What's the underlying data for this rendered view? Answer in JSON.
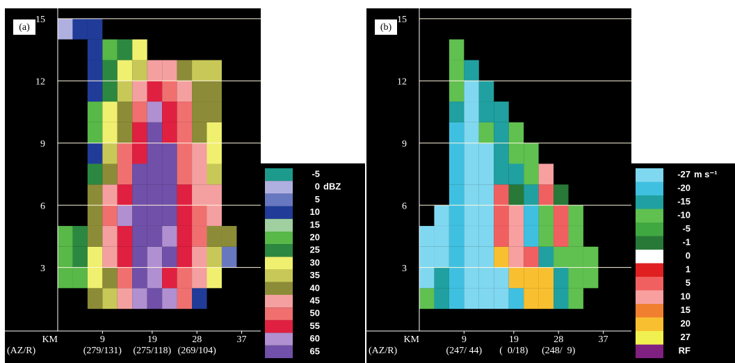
{
  "chart_data": [
    {
      "type": "heatmap",
      "panel_label": "(a)",
      "xlabel": "KM",
      "az_r_label": "(AZ/R)",
      "xlim": [
        0,
        40
      ],
      "xticks": [
        9,
        19,
        28,
        37
      ],
      "ylim": [
        0,
        16
      ],
      "yticks": [
        3,
        6,
        9,
        12,
        15
      ],
      "az_r": [
        "(279/131)",
        "(275/118)",
        "(269/104)"
      ],
      "xbins": [
        0,
        3,
        6,
        9,
        12,
        15,
        18,
        21,
        24,
        27,
        30,
        33,
        36
      ],
      "ybins": [
        1,
        2,
        3,
        4,
        5,
        6,
        7,
        8,
        9,
        10,
        11,
        12,
        13,
        14,
        15
      ],
      "z": [
        [
          null,
          null,
          40,
          35,
          45,
          60,
          65,
          60,
          50,
          10,
          null,
          null
        ],
        [
          20,
          20,
          30,
          40,
          50,
          65,
          60,
          55,
          50,
          45,
          30,
          null
        ],
        [
          20,
          25,
          30,
          45,
          55,
          65,
          60,
          65,
          55,
          45,
          35,
          5
        ],
        [
          20,
          25,
          40,
          45,
          55,
          65,
          65,
          60,
          55,
          50,
          40,
          40
        ],
        [
          null,
          null,
          40,
          50,
          60,
          65,
          65,
          65,
          55,
          50,
          45,
          null
        ],
        [
          null,
          null,
          40,
          45,
          55,
          65,
          65,
          65,
          55,
          45,
          45,
          null
        ],
        [
          null,
          null,
          25,
          40,
          50,
          65,
          65,
          65,
          50,
          45,
          35,
          null
        ],
        [
          null,
          null,
          10,
          35,
          50,
          55,
          65,
          65,
          50,
          45,
          30,
          null
        ],
        [
          null,
          null,
          20,
          30,
          40,
          55,
          65,
          55,
          50,
          40,
          30,
          null
        ],
        [
          null,
          null,
          20,
          30,
          40,
          50,
          60,
          55,
          50,
          40,
          40,
          null
        ],
        [
          null,
          null,
          10,
          25,
          35,
          45,
          55,
          50,
          45,
          40,
          40,
          null
        ],
        [
          null,
          null,
          10,
          25,
          30,
          35,
          45,
          45,
          40,
          35,
          35,
          null
        ],
        [
          null,
          null,
          10,
          20,
          25,
          30,
          null,
          null,
          null,
          null,
          null,
          null
        ],
        [
          0,
          10,
          10,
          null,
          null,
          null,
          null,
          null,
          null,
          null,
          null,
          null
        ]
      ],
      "legend": {
        "levels": [
          -5,
          0,
          5,
          10,
          15,
          20,
          25,
          30,
          35,
          40,
          45,
          50,
          55,
          60,
          65
        ],
        "colors": [
          "#1c9a8c",
          "#b0b0e0",
          "#6878c0",
          "#203c98",
          "#a0d0a0",
          "#58b848",
          "#2c8840",
          "#f0f070",
          "#c8c858",
          "#8c8c38",
          "#f4a0a0",
          "#f07070",
          "#e02040",
          "#b090d0",
          "#7050a8"
        ],
        "unit": "dBZ",
        "unit_level": 1
      }
    },
    {
      "type": "heatmap",
      "panel_label": "(b)",
      "xlabel": "KM",
      "az_r_label": "(AZ/R)",
      "xlim": [
        0,
        40
      ],
      "xticks": [
        9,
        19,
        28,
        37
      ],
      "ylim": [
        0,
        16
      ],
      "yticks": [
        3,
        6,
        9,
        12,
        15
      ],
      "az_r": [
        "(247/ 44)",
        "(  0/18)",
        "(248/  9)"
      ],
      "xbins": [
        0,
        3,
        6,
        9,
        12,
        15,
        18,
        21,
        24,
        27,
        30,
        33,
        36
      ],
      "ybins": [
        1,
        2,
        3,
        4,
        5,
        6,
        7,
        8,
        9,
        10,
        11,
        12,
        13,
        14
      ],
      "z": [
        [
          -10,
          -15,
          -20,
          -27,
          -27,
          -27,
          -20,
          20,
          20,
          -15,
          -10,
          null
        ],
        [
          -27,
          -15,
          -20,
          -27,
          -27,
          -27,
          20,
          20,
          20,
          -15,
          -10,
          -10
        ],
        [
          -27,
          -27,
          -20,
          -27,
          -27,
          20,
          10,
          5,
          -15,
          -10,
          -10,
          -10
        ],
        [
          -27,
          -27,
          -20,
          -27,
          -27,
          5,
          10,
          -20,
          -10,
          5,
          -10,
          null
        ],
        [
          null,
          -27,
          -20,
          -27,
          -27,
          5,
          10,
          -20,
          -10,
          5,
          -10,
          null
        ],
        [
          null,
          null,
          -20,
          -27,
          -27,
          5,
          -1,
          -15,
          5,
          -1,
          null,
          null
        ],
        [
          null,
          null,
          -20,
          -27,
          -27,
          -15,
          -15,
          -10,
          10,
          null,
          null,
          null
        ],
        [
          null,
          null,
          -20,
          -27,
          -27,
          -15,
          -10,
          -10,
          null,
          null,
          null,
          null
        ],
        [
          null,
          null,
          -20,
          -27,
          -10,
          -15,
          -10,
          null,
          null,
          null,
          null,
          null
        ],
        [
          null,
          null,
          -15,
          -27,
          -15,
          -15,
          null,
          null,
          null,
          null,
          null,
          null
        ],
        [
          null,
          null,
          -10,
          -27,
          -15,
          null,
          null,
          null,
          null,
          null,
          null,
          null
        ],
        [
          null,
          null,
          -10,
          -15,
          null,
          null,
          null,
          null,
          null,
          null,
          null,
          null
        ],
        [
          null,
          null,
          -10,
          null,
          null,
          null,
          null,
          null,
          null,
          null,
          null,
          null
        ]
      ],
      "legend": {
        "levels": [
          -27,
          -20,
          -15,
          -10,
          -5,
          -1,
          0,
          1,
          5,
          10,
          15,
          20,
          27
        ],
        "colors": [
          "#80d8f0",
          "#40c0e0",
          "#20a0a0",
          "#60c050",
          "#40a840",
          "#287838",
          "#ffffff",
          "#e02020",
          "#f06060",
          "#f8a0a0",
          "#f08030",
          "#f8c030",
          "#f0f050"
        ],
        "unit": "m s⁻¹",
        "unit_level": 0,
        "rf_label": "RF",
        "rf_color": "#802080"
      }
    }
  ]
}
